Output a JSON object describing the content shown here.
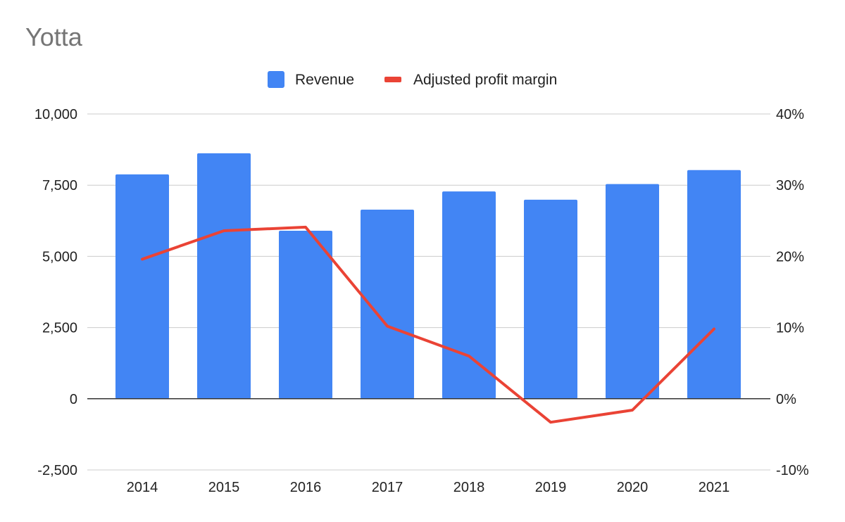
{
  "chart_data": {
    "type": "bar",
    "title": "Yotta",
    "categories": [
      "2014",
      "2015",
      "2016",
      "2017",
      "2018",
      "2019",
      "2020",
      "2021"
    ],
    "series": [
      {
        "name": "Revenue",
        "type": "bar",
        "axis": "left",
        "color": "#4285F4",
        "values": [
          7880,
          8620,
          5900,
          6640,
          7280,
          6990,
          7540,
          8030
        ]
      },
      {
        "name": "Adjusted profit margin",
        "type": "line",
        "axis": "right",
        "color": "#EA4335",
        "values": [
          0.196,
          0.236,
          0.241,
          0.102,
          0.06,
          -0.033,
          -0.016,
          0.098
        ]
      }
    ],
    "y_left": {
      "ylim": [
        -2500,
        10000
      ],
      "ticks": [
        -2500,
        0,
        2500,
        5000,
        7500,
        10000
      ],
      "tick_labels": [
        "-2,500",
        "0",
        "2,500",
        "5,000",
        "7,500",
        "10,000"
      ]
    },
    "y_right": {
      "ylim": [
        -0.1,
        0.4
      ],
      "ticks": [
        -0.1,
        0,
        0.1,
        0.2,
        0.3,
        0.4
      ],
      "tick_labels": [
        "-10%",
        "0%",
        "10%",
        "20%",
        "30%",
        "40%"
      ]
    },
    "grid": true,
    "legend": "top"
  }
}
